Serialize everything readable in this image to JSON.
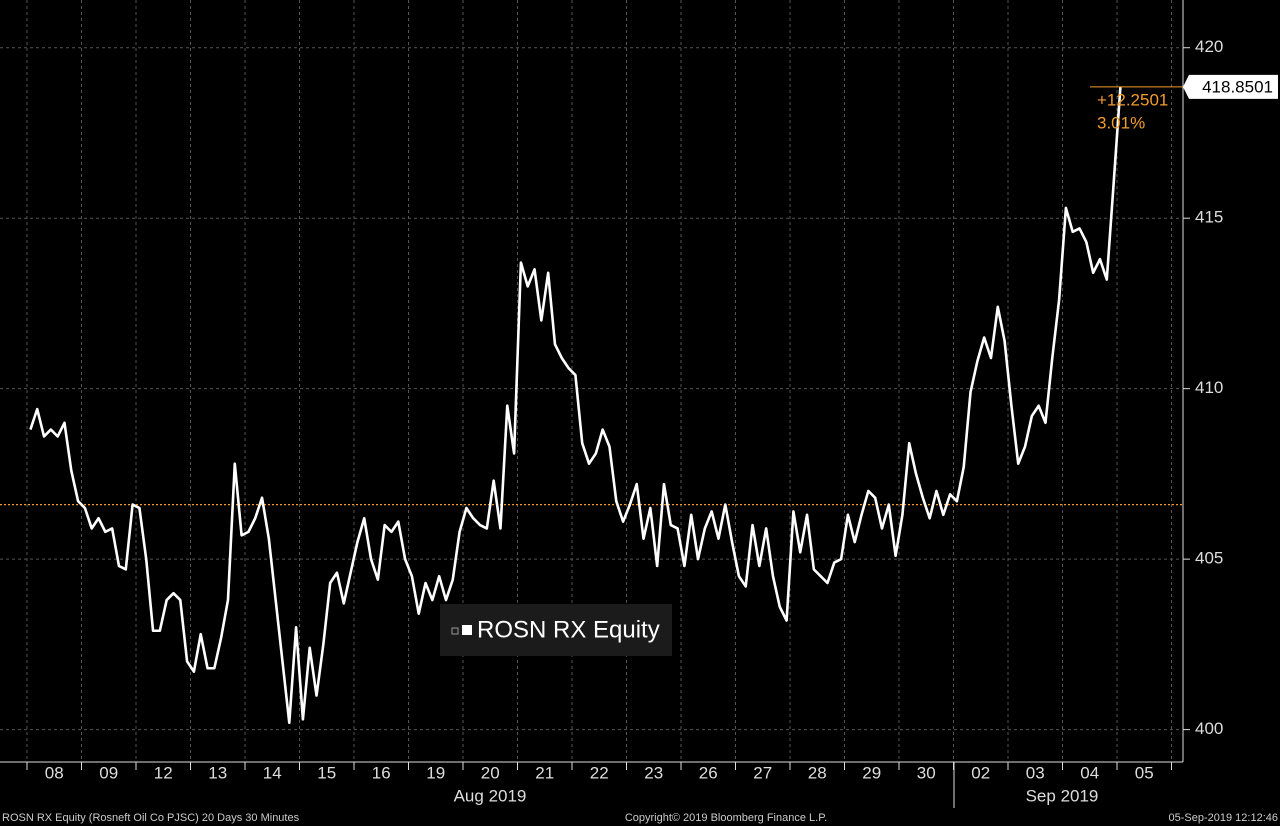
{
  "chart_data": {
    "type": "line",
    "categories": [
      null,
      null,
      null,
      null,
      "08",
      null,
      null,
      null,
      null,
      null,
      null,
      null,
      "09",
      null,
      null,
      null,
      null,
      null,
      null,
      null,
      "12",
      null,
      null,
      null,
      null,
      null,
      null,
      null,
      "13",
      null,
      null,
      null,
      null,
      null,
      null,
      null,
      "14",
      null,
      null,
      null,
      null,
      null,
      null,
      null,
      "15",
      null,
      null,
      null,
      null,
      null,
      null,
      null,
      "16",
      null,
      null,
      null,
      null,
      null,
      null,
      null,
      "19",
      null,
      null,
      null,
      null,
      null,
      null,
      null,
      "20",
      null,
      null,
      null,
      null,
      null,
      null,
      null,
      "21",
      null,
      null,
      null,
      null,
      null,
      null,
      null,
      "22",
      null,
      null,
      null,
      null,
      null,
      null,
      null,
      "23",
      null,
      null,
      null,
      null,
      null,
      null,
      null,
      "26",
      null,
      null,
      null,
      null,
      null,
      null,
      null,
      "27",
      null,
      null,
      null,
      null,
      null,
      null,
      null,
      "28",
      null,
      null,
      null,
      null,
      null,
      null,
      null,
      "29",
      null,
      null,
      null,
      null,
      null,
      null,
      null,
      "30",
      null,
      null,
      null,
      null,
      null,
      null,
      null,
      "02",
      null,
      null,
      null,
      null,
      null,
      null,
      null,
      "03",
      null,
      null,
      null,
      null,
      null,
      null,
      null,
      "04",
      null,
      null,
      null,
      null,
      null,
      null,
      null,
      "05",
      null,
      null,
      null
    ],
    "period_labels": [
      "Aug 2019",
      "Sep 2019"
    ],
    "series": [
      {
        "name": "ROSN RX Equity",
        "color": "#ffffff",
        "values": [
          408.8,
          409.4,
          408.6,
          408.8,
          408.6,
          409.0,
          407.6,
          406.7,
          406.5,
          405.9,
          406.2,
          405.8,
          405.9,
          404.8,
          404.7,
          406.6,
          406.5,
          405.0,
          402.9,
          402.9,
          403.8,
          404.0,
          403.8,
          402.0,
          401.7,
          402.8,
          401.8,
          401.8,
          402.7,
          403.8,
          407.8,
          405.7,
          405.8,
          406.2,
          406.8,
          405.6,
          403.8,
          402.0,
          400.2,
          403.0,
          400.3,
          402.4,
          401.0,
          402.5,
          404.3,
          404.6,
          403.7,
          404.6,
          405.5,
          406.2,
          405.0,
          404.4,
          406.0,
          405.8,
          406.1,
          405.0,
          404.5,
          403.4,
          404.3,
          403.8,
          404.5,
          403.8,
          404.4,
          405.8,
          406.5,
          406.2,
          406.0,
          405.9,
          407.3,
          405.9,
          409.5,
          408.1,
          413.7,
          413.0,
          413.5,
          412.0,
          413.4,
          411.3,
          410.9,
          410.6,
          410.4,
          408.4,
          407.8,
          408.1,
          408.8,
          408.3,
          406.7,
          406.1,
          406.6,
          407.2,
          405.6,
          406.5,
          404.8,
          407.2,
          406.0,
          405.9,
          404.8,
          406.3,
          405.0,
          405.9,
          406.4,
          405.6,
          406.6,
          405.5,
          404.5,
          404.2,
          406.0,
          404.8,
          405.9,
          404.5,
          403.6,
          403.2,
          406.4,
          405.2,
          406.3,
          404.7,
          404.5,
          404.3,
          404.9,
          405.0,
          406.3,
          405.5,
          406.3,
          407.0,
          406.8,
          405.9,
          406.6,
          405.1,
          406.3,
          408.4,
          407.5,
          406.8,
          406.2,
          407.0,
          406.3,
          406.9,
          406.7,
          407.7,
          409.9,
          410.8,
          411.5,
          410.9,
          412.4,
          411.4,
          409.5,
          407.8,
          408.3,
          409.2,
          409.5,
          409.0,
          410.9,
          412.6,
          415.3,
          414.6,
          414.7,
          414.3,
          413.4,
          413.8,
          413.2,
          416.0,
          418.8501,
          null,
          null,
          null,
          null,
          null,
          null,
          null
        ]
      }
    ],
    "last_price": 418.8501,
    "change": {
      "value": 12.2501,
      "label": "+12.2501"
    },
    "change_pct": {
      "value": 3.01,
      "label": "3.01%"
    },
    "reference_line": 406.6,
    "reference_color": "#f39c2b",
    "ylim": [
      399.05,
      421.4
    ],
    "yticks": [
      400,
      405,
      410,
      415,
      420
    ],
    "grid": true,
    "footer_left": "ROSN RX Equity (Rosneft Oil Co PJSC) 20 Days 30 Minutes",
    "footer_center": "Copyright© 2019 Bloomberg Finance L.P.",
    "footer_right": "05-Sep-2019 12:12:46"
  }
}
